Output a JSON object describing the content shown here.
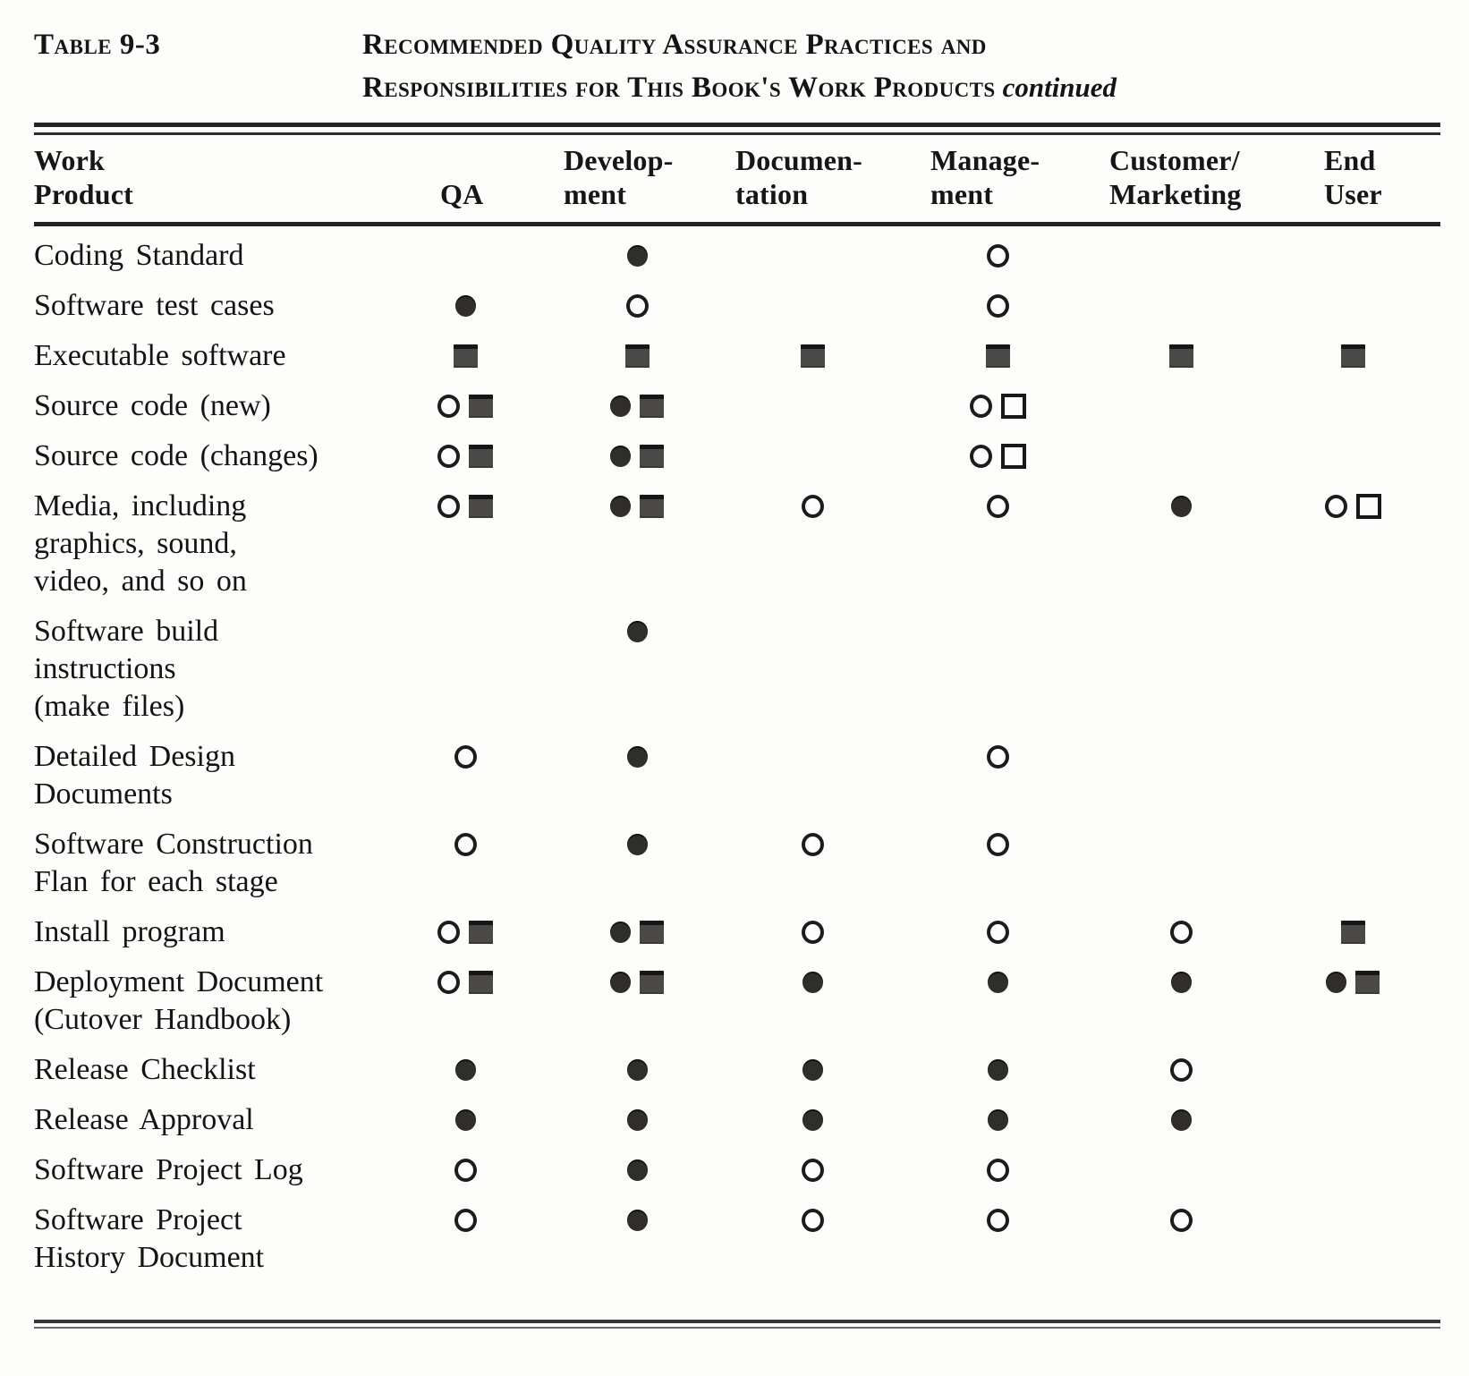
{
  "table": {
    "label": "Table 9-3",
    "title_line1": "Recommended Quality Assurance Practices and",
    "title_line2": "Responsibilities for This Book's Work Products",
    "title_continued": "continued",
    "icons": {
      "filled-circle": "●",
      "open-circle": "○",
      "filled-square": "■",
      "open-square": "□"
    },
    "columns": [
      {
        "id": "work-product",
        "lines": [
          "Work",
          "Product"
        ]
      },
      {
        "id": "qa",
        "lines": [
          "QA"
        ]
      },
      {
        "id": "development",
        "lines": [
          "Develop-",
          "ment"
        ]
      },
      {
        "id": "documentation",
        "lines": [
          "Documen-",
          "tation"
        ]
      },
      {
        "id": "management",
        "lines": [
          "Manage-",
          "ment"
        ]
      },
      {
        "id": "customer-marketing",
        "lines": [
          "Customer/",
          "Marketing"
        ]
      },
      {
        "id": "end-user",
        "lines": [
          "End",
          "User"
        ]
      }
    ],
    "rows": [
      {
        "product": [
          "Coding Standard"
        ],
        "cells": [
          [],
          [
            "filled-circle"
          ],
          [],
          [
            "open-circle"
          ],
          [],
          []
        ]
      },
      {
        "product": [
          "Software test cases"
        ],
        "cells": [
          [
            "filled-circle"
          ],
          [
            "open-circle"
          ],
          [],
          [
            "open-circle"
          ],
          [],
          []
        ]
      },
      {
        "product": [
          "Executable software"
        ],
        "cells": [
          [
            "filled-square"
          ],
          [
            "filled-square"
          ],
          [
            "filled-square"
          ],
          [
            "filled-square"
          ],
          [
            "filled-square"
          ],
          [
            "filled-square"
          ]
        ]
      },
      {
        "product": [
          "Source code (new)"
        ],
        "cells": [
          [
            "open-circle",
            "filled-square"
          ],
          [
            "filled-circle",
            "filled-square"
          ],
          [],
          [
            "open-circle",
            "open-square"
          ],
          [],
          []
        ]
      },
      {
        "product": [
          "Source code (changes)"
        ],
        "cells": [
          [
            "open-circle",
            "filled-square"
          ],
          [
            "filled-circle",
            "filled-square"
          ],
          [],
          [
            "open-circle",
            "open-square"
          ],
          [],
          []
        ]
      },
      {
        "product": [
          "Media, including",
          "graphics, sound,",
          "video, and so on"
        ],
        "cells": [
          [
            "open-circle",
            "filled-square"
          ],
          [
            "filled-circle",
            "filled-square"
          ],
          [
            "open-circle"
          ],
          [
            "open-circle"
          ],
          [
            "filled-circle"
          ],
          [
            "open-circle",
            "open-square"
          ]
        ]
      },
      {
        "product": [
          "Software build",
          "instructions",
          "(make files)"
        ],
        "cells": [
          [],
          [
            "filled-circle"
          ],
          [],
          [],
          [],
          []
        ]
      },
      {
        "product": [
          "Detailed Design",
          "Documents"
        ],
        "cells": [
          [
            "open-circle"
          ],
          [
            "filled-circle"
          ],
          [],
          [
            "open-circle"
          ],
          [],
          []
        ]
      },
      {
        "product": [
          "Software Construction",
          "Flan for each stage"
        ],
        "cells": [
          [
            "open-circle"
          ],
          [
            "filled-circle"
          ],
          [
            "open-circle"
          ],
          [
            "open-circle"
          ],
          [],
          []
        ]
      },
      {
        "product": [
          "Install program"
        ],
        "cells": [
          [
            "open-circle",
            "filled-square"
          ],
          [
            "filled-circle",
            "filled-square"
          ],
          [
            "open-circle"
          ],
          [
            "open-circle"
          ],
          [
            "open-circle"
          ],
          [
            "filled-square"
          ]
        ]
      },
      {
        "product": [
          "Deployment Document",
          "(Cutover Handbook)"
        ],
        "cells": [
          [
            "open-circle",
            "filled-square"
          ],
          [
            "filled-circle",
            "filled-square"
          ],
          [
            "filled-circle"
          ],
          [
            "filled-circle"
          ],
          [
            "filled-circle"
          ],
          [
            "filled-circle",
            "filled-square"
          ]
        ]
      },
      {
        "product": [
          "Release Checklist"
        ],
        "cells": [
          [
            "filled-circle"
          ],
          [
            "filled-circle"
          ],
          [
            "filled-circle"
          ],
          [
            "filled-circle"
          ],
          [
            "open-circle"
          ],
          []
        ]
      },
      {
        "product": [
          "Release Approval"
        ],
        "cells": [
          [
            "filled-circle"
          ],
          [
            "filled-circle"
          ],
          [
            "filled-circle"
          ],
          [
            "filled-circle"
          ],
          [
            "filled-circle"
          ],
          []
        ]
      },
      {
        "product": [
          "Software Project Log"
        ],
        "cells": [
          [
            "open-circle"
          ],
          [
            "filled-circle"
          ],
          [
            "open-circle"
          ],
          [
            "open-circle"
          ],
          [],
          []
        ]
      },
      {
        "product": [
          "Software Project",
          "History Document"
        ],
        "cells": [
          [
            "open-circle"
          ],
          [
            "filled-circle"
          ],
          [
            "open-circle"
          ],
          [
            "open-circle"
          ],
          [
            "open-circle"
          ],
          []
        ]
      }
    ]
  }
}
